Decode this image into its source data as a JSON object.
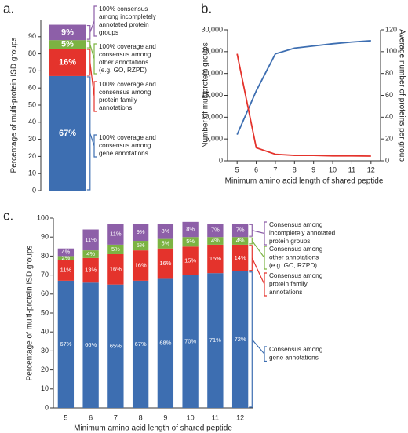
{
  "chart_data": [
    {
      "type": "bar",
      "stacked": true,
      "panel_label": "a.",
      "ylabel": "Percentage of multi-protein ISD groups",
      "categories": [
        null
      ],
      "ylim": [
        0,
        100
      ],
      "yticks": [
        0,
        10,
        20,
        30,
        40,
        50,
        60,
        70,
        80,
        90
      ],
      "series": [
        {
          "color": "#3d6eb1",
          "values": [
            67
          ],
          "value_labels": [
            "67%"
          ],
          "annotation": [
            "100% coverage and",
            "consensus among",
            "gene annotations"
          ]
        },
        {
          "color": "#e4332c",
          "values": [
            16
          ],
          "value_labels": [
            "16%"
          ],
          "annotation": [
            "100% coverage and",
            "consensus among",
            "protein family",
            "annotations"
          ]
        },
        {
          "color": "#7cb342",
          "values": [
            5
          ],
          "value_labels": [
            "5%"
          ],
          "annotation": [
            "100% coverage and",
            "consensus among",
            "other annotations",
            "(e.g. GO, RZPD)"
          ]
        },
        {
          "color": "#8d5fa8",
          "values": [
            9
          ],
          "value_labels": [
            "9%"
          ],
          "annotation": [
            "100% consensus",
            "among incompletely",
            "annotated protein",
            "groups"
          ]
        }
      ]
    },
    {
      "type": "line",
      "panel_label": "b.",
      "xlabel": "Minimum amino acid length of shared peptide",
      "ylabel": "Number of multiprotein groups",
      "y2label": "Average number of proteins per group",
      "x": [
        5,
        6,
        7,
        8,
        9,
        10,
        11,
        12
      ],
      "xlim": [
        4.5,
        12.5
      ],
      "xticks": [
        5,
        6,
        7,
        8,
        9,
        10,
        11,
        12
      ],
      "ylim": [
        0,
        30000
      ],
      "yticks": [
        0,
        {
          "value": 5000,
          "label": "5,000"
        },
        {
          "value": 10000,
          "label": "10,000"
        },
        {
          "value": 15000,
          "label": "15,000"
        },
        {
          "value": 20000,
          "label": "20,000"
        },
        {
          "value": 25000,
          "label": "25,000"
        },
        {
          "value": 30000,
          "label": "30,000"
        }
      ],
      "y2lim": [
        0,
        120
      ],
      "y2ticks": [
        0,
        20,
        40,
        60,
        80,
        100,
        120
      ],
      "series": [
        {
          "color": "#3d6eb1",
          "values": [
            6000,
            16000,
            24500,
            25800,
            26300,
            26800,
            27200,
            27500
          ]
        },
        {
          "color": "#e4332c",
          "axis": "y2",
          "values": [
            98,
            12,
            6,
            5,
            5,
            4.5,
            4.5,
            4.3
          ]
        }
      ]
    },
    {
      "type": "bar",
      "stacked": true,
      "panel_label": "c.",
      "xlabel": "Minimum amino acid length of shared peptide",
      "ylabel": "Percentage of multi-protein ISD groups",
      "categories": [
        "5",
        "6",
        "7",
        "8",
        "9",
        "10",
        "11",
        "12"
      ],
      "ylim": [
        0,
        100
      ],
      "yticks": [
        0,
        10,
        20,
        30,
        40,
        50,
        60,
        70,
        80,
        90,
        100
      ],
      "series": [
        {
          "color": "#3d6eb1",
          "values": [
            67,
            66,
            65,
            67,
            68,
            70,
            71,
            72
          ],
          "value_labels": [
            "67%",
            "66%",
            "65%",
            "67%",
            "68%",
            "70%",
            "71%",
            "72%"
          ],
          "annotation": [
            "Consensus among",
            "gene annotations"
          ]
        },
        {
          "color": "#e4332c",
          "values": [
            11,
            13,
            16,
            16,
            16,
            15,
            15,
            14
          ],
          "value_labels": [
            "11%",
            "13%",
            "16%",
            "16%",
            "16%",
            "15%",
            "15%",
            "14%"
          ],
          "annotation": [
            "Consensus among",
            "protein family",
            "annotations"
          ]
        },
        {
          "color": "#7cb342",
          "values": [
            2,
            4,
            5,
            5,
            5,
            5,
            4,
            4
          ],
          "value_labels": [
            "2%",
            "4%",
            "5%",
            "5%",
            "5%",
            "5%",
            "4%",
            "4%"
          ],
          "annotation": [
            "Consensus among",
            "other annotations",
            "(e.g. GO, RZPD)"
          ]
        },
        {
          "color": "#8d5fa8",
          "values": [
            4,
            11,
            11,
            9,
            8,
            8,
            7,
            7
          ],
          "value_labels": [
            "4%",
            "11%",
            "11%",
            "9%",
            "8%",
            "8%",
            "7%",
            "7%"
          ],
          "annotation": [
            "Consensus among",
            "incompletely annotated",
            "protein groups"
          ]
        }
      ]
    }
  ]
}
